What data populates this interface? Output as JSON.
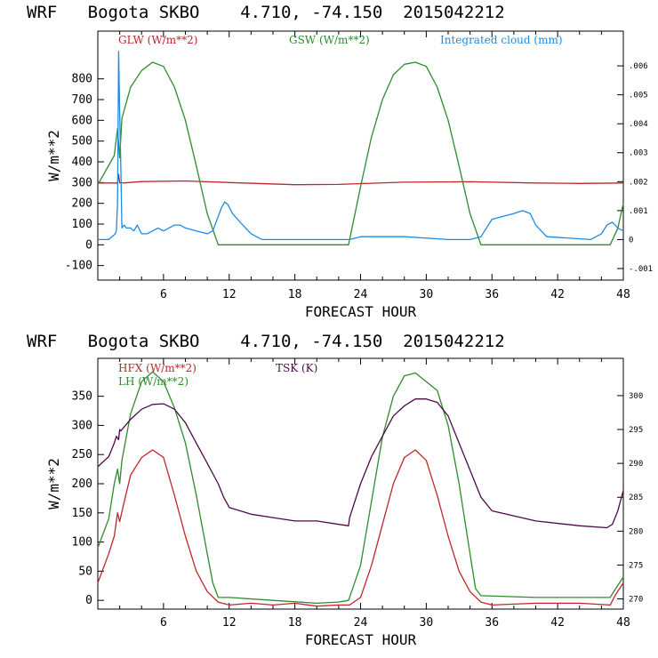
{
  "chart_data": [
    {
      "type": "line",
      "title": "WRF   Bogota SKBO    4.710, -74.150  2015042212",
      "xlabel": "FORECAST HOUR",
      "ylabel": "W/m**2",
      "xlim": [
        0,
        48
      ],
      "ylim": [
        -170,
        1030
      ],
      "y2lim": [
        -0.0014,
        0.0072
      ],
      "xticks": [
        6,
        12,
        18,
        24,
        30,
        36,
        42,
        48
      ],
      "yticks": [
        -100,
        0,
        100,
        200,
        300,
        400,
        500,
        600,
        700,
        800
      ],
      "y2ticks": [
        -0.001,
        0,
        0.001,
        0.002,
        0.003,
        0.004,
        0.005,
        0.006
      ],
      "y2ticklabels": [
        "-.001",
        "0",
        ".001",
        ".002",
        ".003",
        ".004",
        ".005",
        ".006"
      ],
      "series": [
        {
          "name": "GLW (W/m**2)",
          "color": "#c0262b",
          "axis": "left",
          "x": [
            0,
            1.8,
            1.9,
            2.0,
            2.1,
            2.3,
            4,
            8,
            12,
            18,
            22,
            24,
            28,
            34,
            40,
            44,
            48
          ],
          "y": [
            298,
            298,
            340,
            298,
            300,
            298,
            305,
            308,
            300,
            290,
            291,
            295,
            302,
            304,
            298,
            296,
            298
          ]
        },
        {
          "name": "GSW (W/m**2)",
          "color": "#2e8b2e",
          "axis": "left",
          "x": [
            0,
            1.5,
            1.8,
            2.0,
            2.2,
            3,
            4,
            5,
            6,
            7,
            8,
            9,
            10,
            11,
            12,
            16,
            20,
            22.9,
            24,
            25,
            26,
            27,
            28,
            29,
            30,
            31,
            32,
            33,
            34,
            35,
            35.2,
            40,
            46.8,
            47.5,
            48
          ],
          "y": [
            290,
            430,
            560,
            420,
            610,
            760,
            840,
            880,
            860,
            760,
            600,
            380,
            150,
            0,
            0,
            0,
            0,
            0,
            280,
            520,
            700,
            820,
            870,
            880,
            860,
            760,
            600,
            380,
            150,
            0,
            0,
            0,
            0,
            80,
            200
          ]
        },
        {
          "name": "Integrated cloud (mm)",
          "color": "#1f8ae0",
          "axis": "right",
          "x": [
            0,
            1.0,
            1.6,
            1.7,
            1.8,
            1.9,
            2.0,
            2.1,
            2.2,
            2.4,
            2.6,
            3,
            3.3,
            3.6,
            4,
            4.5,
            5,
            5.5,
            6,
            7,
            7.5,
            8,
            9,
            10,
            10.5,
            11,
            11.3,
            11.6,
            11.9,
            12.3,
            13,
            14,
            15,
            18,
            22,
            23,
            24,
            28,
            32,
            34,
            35,
            36,
            37,
            38,
            38.8,
            39.5,
            40,
            41,
            45,
            46,
            46.5,
            47,
            47.5,
            48
          ],
          "y": [
            0,
            0,
            0.0002,
            0.0003,
            0.0013,
            0.0065,
            0.0044,
            0.0025,
            0.0004,
            0.0005,
            0.0004,
            0.0004,
            0.0003,
            0.0005,
            0.0002,
            0.0002,
            0.0003,
            0.0004,
            0.0003,
            0.0005,
            0.0005,
            0.0004,
            0.0003,
            0.0002,
            0.0003,
            0.0008,
            0.0011,
            0.0013,
            0.0012,
            0.0009,
            0.0006,
            0.0002,
            0.0,
            0.0,
            0.0,
            0.0,
            0.0001,
            0.0001,
            0.0,
            0.0,
            0.0001,
            0.0007,
            0.0008,
            0.0009,
            0.001,
            0.0009,
            0.0005,
            0.0001,
            0.0,
            0.0002,
            0.0005,
            0.0006,
            0.0004,
            0.0003
          ]
        }
      ]
    },
    {
      "type": "line",
      "title": "WRF   Bogota SKBO    4.710, -74.150  2015042212",
      "xlabel": "FORECAST HOUR",
      "ylabel": "W/m**2",
      "xlim": [
        0,
        48
      ],
      "ylim": [
        -15,
        415
      ],
      "y2lim": [
        268.5,
        305.5
      ],
      "xticks": [
        6,
        12,
        18,
        24,
        30,
        36,
        42,
        48
      ],
      "yticks": [
        0,
        50,
        100,
        150,
        200,
        250,
        300,
        350
      ],
      "y2ticks": [
        270,
        275,
        280,
        285,
        290,
        295,
        300
      ],
      "y2ticklabels": [
        "270",
        "275",
        "280",
        "285",
        "290",
        "295",
        "300"
      ],
      "series": [
        {
          "name": "HFX (W/m**2)",
          "color": "#c0262b",
          "axis": "left",
          "x": [
            0,
            1.0,
            1.5,
            1.8,
            2.0,
            2.3,
            3,
            4,
            5,
            6,
            7,
            8,
            9,
            10,
            11,
            12,
            14,
            16,
            18,
            20,
            22,
            23,
            24,
            25,
            26,
            27,
            28,
            29,
            30,
            31,
            32,
            33,
            34,
            35,
            36,
            40,
            44,
            46.8,
            47.3,
            48
          ],
          "y": [
            30,
            80,
            110,
            150,
            135,
            160,
            215,
            245,
            258,
            245,
            180,
            110,
            50,
            15,
            -3,
            -8,
            -5,
            -8,
            -5,
            -10,
            -8,
            -8,
            5,
            60,
            130,
            200,
            245,
            258,
            240,
            180,
            110,
            50,
            15,
            -3,
            -8,
            -5,
            -5,
            -8,
            10,
            30
          ]
        },
        {
          "name": "LH (W/m**2)",
          "color": "#2e8b2e",
          "axis": "left",
          "x": [
            0,
            1.0,
            1.5,
            1.8,
            2.0,
            2.2,
            3,
            4,
            5,
            6,
            7,
            8,
            9,
            10,
            10.5,
            11,
            12,
            16,
            20,
            22,
            22.9,
            24,
            25,
            26,
            27,
            28,
            29,
            30,
            31,
            32,
            33,
            34,
            34.5,
            35,
            40,
            46.8,
            47.3,
            48
          ],
          "y": [
            90,
            140,
            200,
            225,
            200,
            240,
            320,
            375,
            392,
            375,
            330,
            270,
            180,
            80,
            30,
            5,
            5,
            0,
            -5,
            -3,
            0,
            60,
            170,
            280,
            350,
            385,
            390,
            375,
            360,
            300,
            200,
            80,
            20,
            8,
            5,
            5,
            20,
            40
          ]
        },
        {
          "name": "TSK (K)",
          "color": "#4b0a4a",
          "axis": "right",
          "x": [
            0,
            1.0,
            1.5,
            1.7,
            1.9,
            2.0,
            2.1,
            3,
            4,
            5,
            6,
            7,
            8,
            9,
            10,
            11,
            11.5,
            12,
            14,
            16,
            18,
            20,
            22,
            22.9,
            23.0,
            24,
            25,
            26,
            27,
            28,
            29,
            30,
            31,
            32,
            33,
            34,
            35,
            36,
            40,
            44,
            46.5,
            47,
            47.5,
            48
          ],
          "y": [
            289.5,
            291,
            293,
            294,
            293.5,
            295,
            294.8,
            296.5,
            298,
            298.7,
            298.8,
            298,
            296,
            293,
            290,
            287,
            285,
            283.5,
            282.5,
            282,
            281.5,
            281.5,
            281,
            280.8,
            282,
            287,
            291,
            294,
            297,
            298.5,
            299.5,
            299.5,
            299,
            297,
            293,
            289,
            285,
            283,
            281.5,
            280.8,
            280.5,
            281,
            283,
            286
          ]
        }
      ]
    }
  ]
}
